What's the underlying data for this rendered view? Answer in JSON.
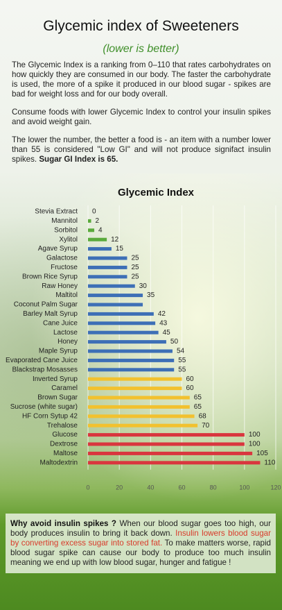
{
  "header": {
    "title": "Glycemic index of Sweeteners",
    "subtitle": "(lower is better)"
  },
  "intro": {
    "p1": "The Glycemic Index is a ranking from 0–110 that rates carbohydrates on how quickly they are consumed in our body. The faster the carbohydrate is used, the more of a spike it produced in our blood sugar - spikes are bad for weight loss and for our body overall.",
    "p2": "Consume foods with lower Glycemic Index to control your insulin spikes and avoid weight gain.",
    "p3": "The lower the number, the better a food is - an item with a number lower than 55 is considered \"Low GI\" and will not produce signifact insulin spikes.",
    "p3_bold": "Sugar GI Index is 65."
  },
  "chart_data": {
    "type": "hbar",
    "title": "Glycemic Index",
    "categories": [
      "Stevia Extract",
      "Mannitol",
      "Sorbitol",
      "Xylitol",
      "Agave Syrup",
      "Galactose",
      "Fructose",
      "Brown Rice Syrup",
      "Raw Honey",
      "Maltitol",
      "Coconut Palm Sugar",
      "Barley Malt Syrup",
      "Cane Juice",
      "Lactose",
      "Honey",
      "Maple Syrup",
      "Evaporated Cane Juice",
      "Blackstrap Mosasses",
      "Inverted Syrup",
      "Caramel",
      "Brown Sugar",
      "Sucrose (white sugar)",
      "HF Corn Sytup 42",
      "Trehalose",
      "Glucose",
      "Dextrose",
      "Maltose",
      "Maltodextrin"
    ],
    "values": [
      0,
      2,
      4,
      12,
      15,
      25,
      25,
      25,
      30,
      35,
      35,
      42,
      43,
      45,
      50,
      54,
      55,
      55,
      60,
      60,
      65,
      65,
      68,
      70,
      100,
      100,
      105,
      110
    ],
    "value_labels": [
      "0",
      "2",
      "4",
      "12",
      "15",
      "25",
      "25",
      "25",
      "30",
      "35",
      null,
      "42",
      "43",
      "45",
      "50",
      "54",
      "55",
      "55",
      "60",
      "60",
      "65",
      "65",
      "68",
      "70",
      "100",
      "100",
      "105",
      "110"
    ],
    "colors": [
      "#5aaa3c",
      "#5aaa3c",
      "#5aaa3c",
      "#5aaa3c",
      "#3d6fb6",
      "#3d6fb6",
      "#3d6fb6",
      "#3d6fb6",
      "#3d6fb6",
      "#3d6fb6",
      "#3d6fb6",
      "#3d6fb6",
      "#3d6fb6",
      "#3d6fb6",
      "#3d6fb6",
      "#3d6fb6",
      "#3d6fb6",
      "#3d6fb6",
      "#f2c12e",
      "#f2c12e",
      "#f2c12e",
      "#f2c12e",
      "#f2c12e",
      "#f2c12e",
      "#d9363e",
      "#d9363e",
      "#d9363e",
      "#d9363e"
    ],
    "xlim": [
      0,
      120
    ],
    "xticks": [
      0,
      20,
      40,
      60,
      80,
      100,
      120
    ],
    "grid": true
  },
  "footer": {
    "bold": "Why avoid insulin spikes ?",
    "text1": "When our blood sugar goes too high, our body produces insulin to bring it back down.",
    "red": "Insulin lowers blood sugar by converting excess sugar into stored fat.",
    "text2": "To make matters worse, rapid blood sugar spike can cause our body to produce too much insulin meaning we end up with low blood sugar, hunger and fatigue !"
  }
}
